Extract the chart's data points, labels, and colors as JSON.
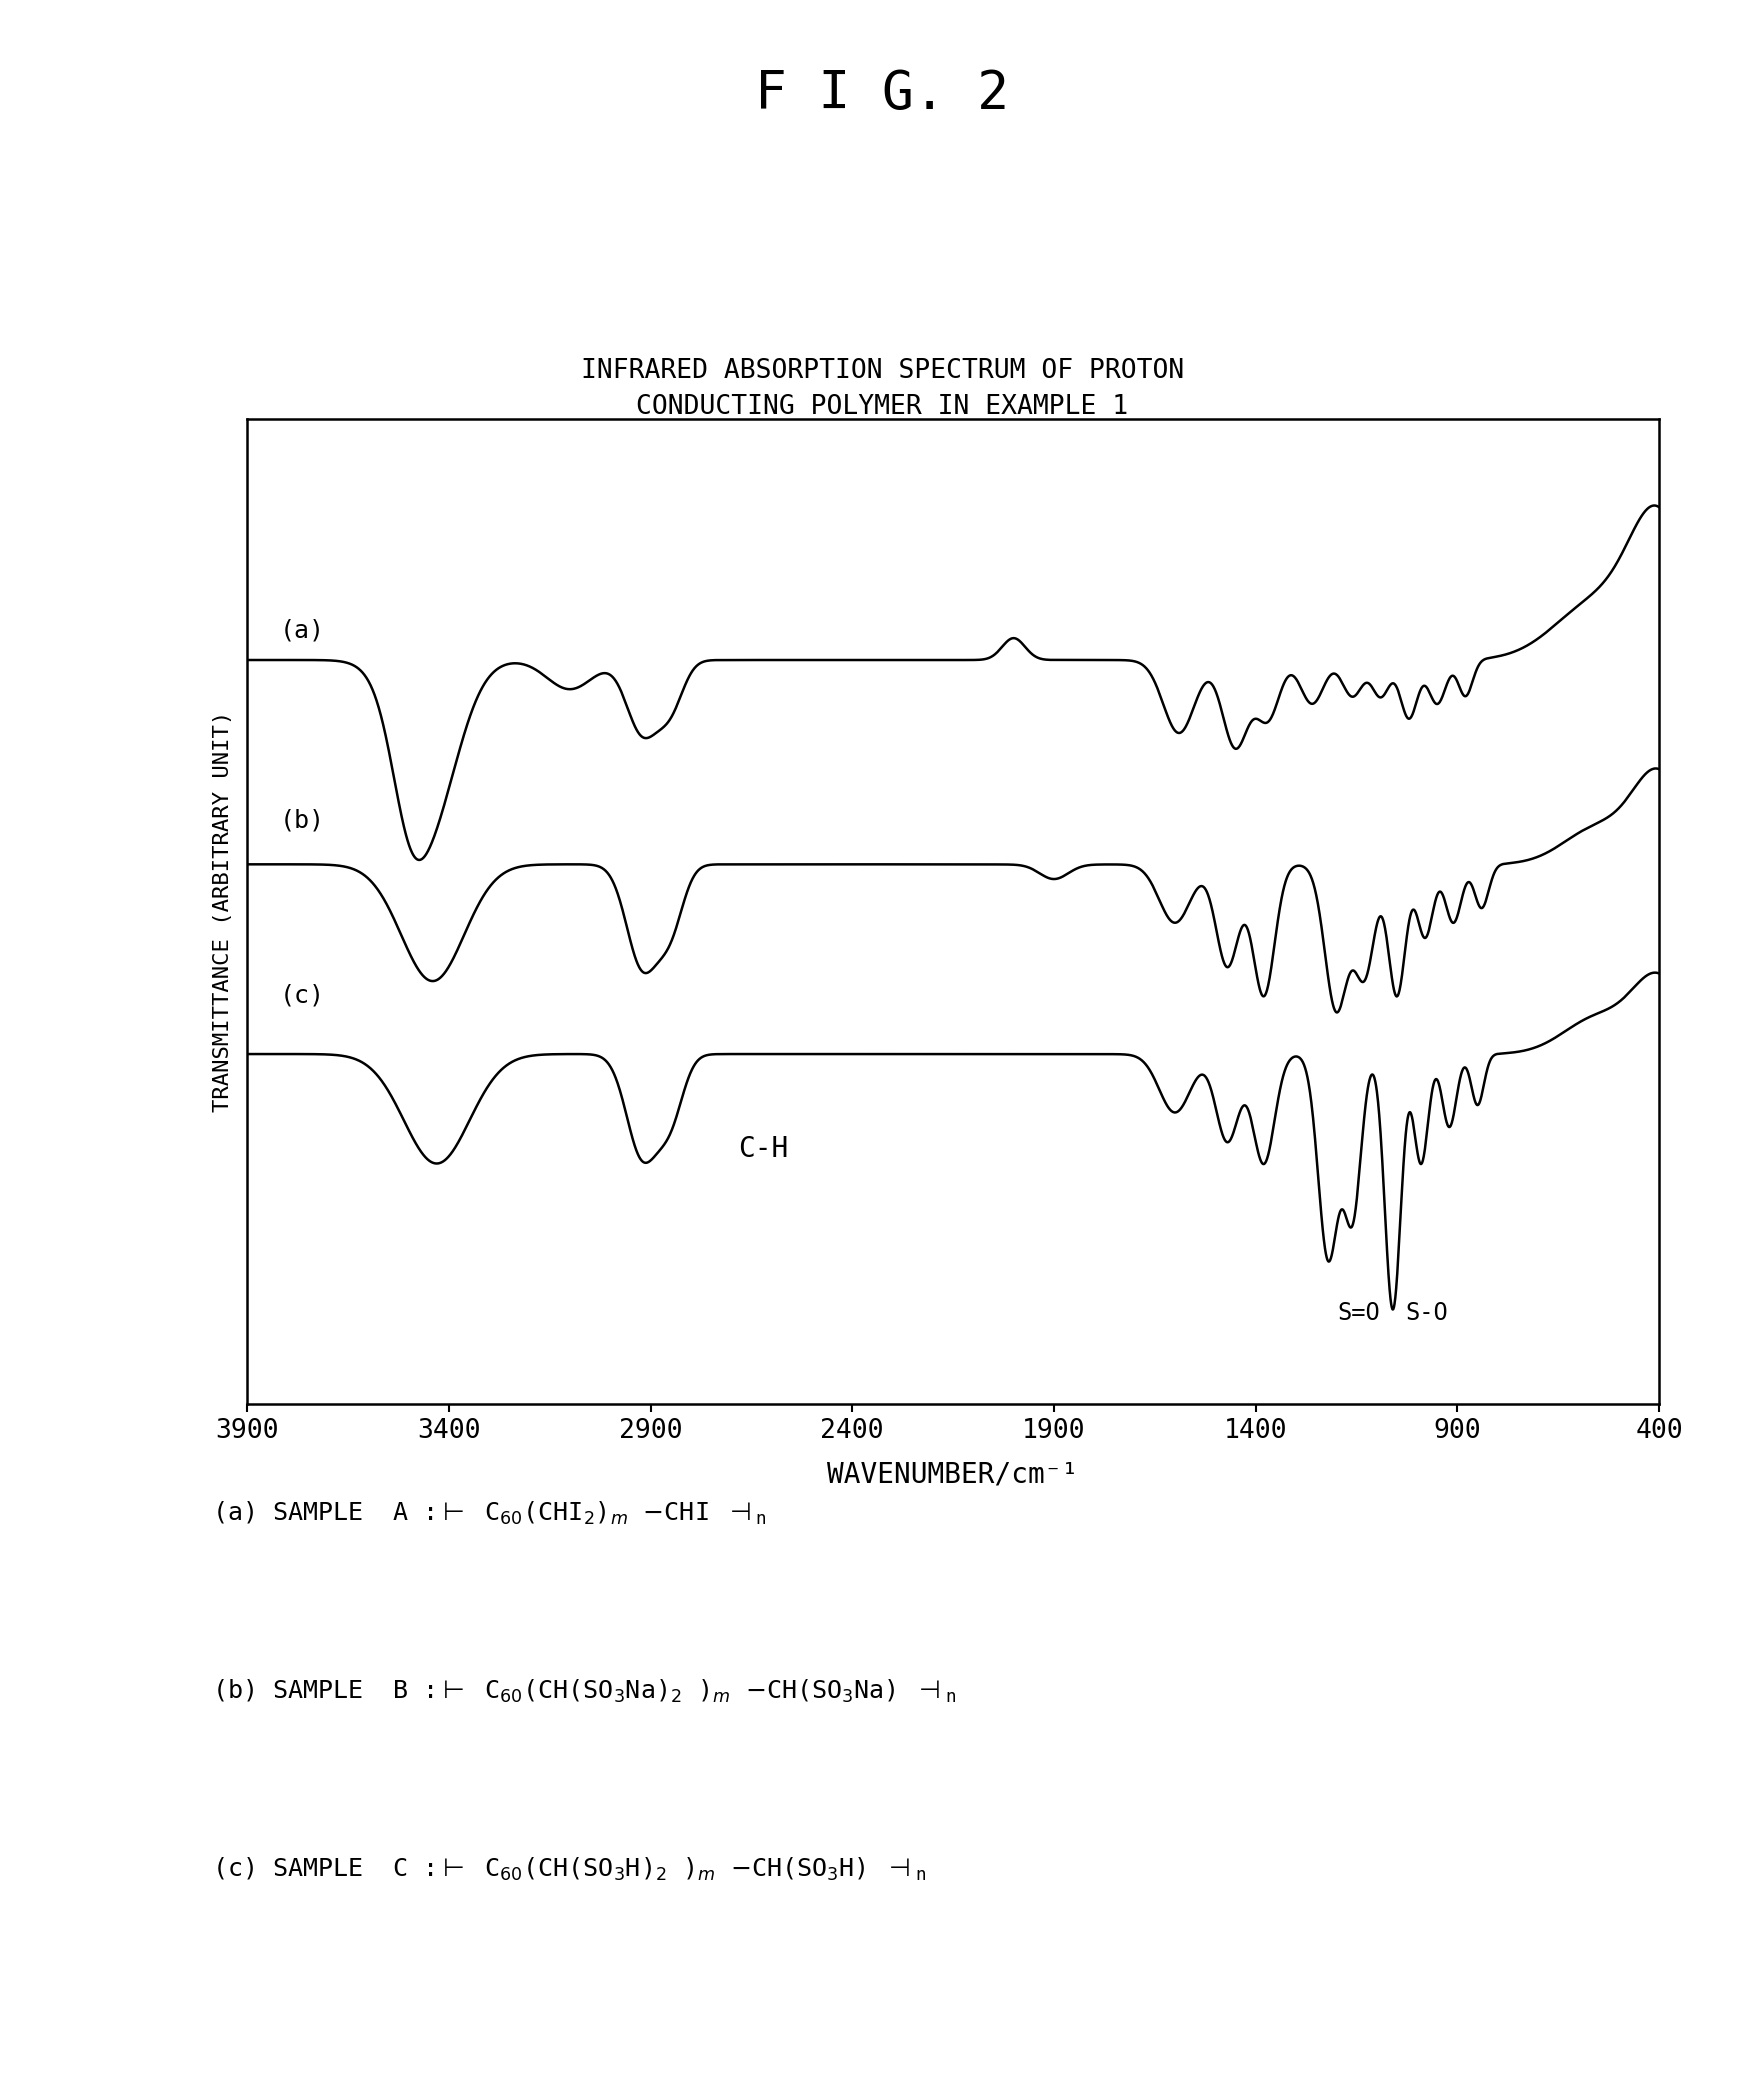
{
  "title": "F I G. 2",
  "subtitle_line1": "INFRARED ABSORPTION SPECTRUM OF PROTON",
  "subtitle_line2": "CONDUCTING POLYMER IN EXAMPLE 1",
  "xlabel": "WAVENUMBER/cm⁻¹",
  "ylabel": "TRANSMITTANCE (ARBITRARY UNIT)",
  "xmin": 400,
  "xmax": 3900,
  "xticks": [
    3900,
    3400,
    2900,
    2400,
    1900,
    1400,
    900,
    400
  ],
  "background_color": "#ffffff",
  "line_color": "#000000",
  "annotation_CH": "C-H",
  "annotation_SO1": "S=O",
  "annotation_SO2": "S-O"
}
